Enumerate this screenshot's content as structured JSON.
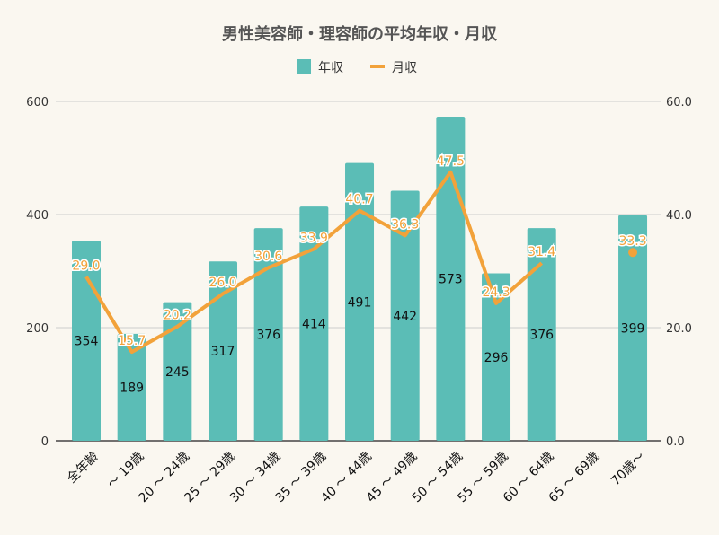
{
  "chart_data": {
    "type": "bar+line",
    "title": "男性美容師・理容師の平均年収・月収",
    "legend_position": "top",
    "grid": true,
    "categories": [
      "全年齢",
      "～ 19歳",
      "20 ～ 24歳",
      "25 ～ 29歳",
      "30 ～ 34歳",
      "35 ～ 39歳",
      "40 ～ 44歳",
      "45 ～ 49歳",
      "50 ～ 54歳",
      "55 ～ 59歳",
      "60 ～ 64歳",
      "65 ～ 69歳",
      "70歳～"
    ],
    "series": [
      {
        "name": "年収",
        "type": "bar",
        "axis": "left",
        "color": "#5bbdb6",
        "values": [
          354,
          189,
          245,
          317,
          376,
          414,
          491,
          442,
          573,
          296,
          376,
          null,
          399
        ]
      },
      {
        "name": "月収",
        "type": "line",
        "axis": "right",
        "color": "#f2a23a",
        "values": [
          29.0,
          15.7,
          20.2,
          26.0,
          30.6,
          33.9,
          40.7,
          36.3,
          47.5,
          24.3,
          31.4,
          null,
          33.3
        ]
      }
    ],
    "y_left": {
      "ylim": [
        0,
        600
      ],
      "ticks": [
        "0",
        "200",
        "400",
        "600"
      ]
    },
    "y_right": {
      "ylim": [
        0,
        60
      ],
      "ticks": [
        "0.0",
        "20.0",
        "40.0",
        "60.0"
      ]
    }
  }
}
